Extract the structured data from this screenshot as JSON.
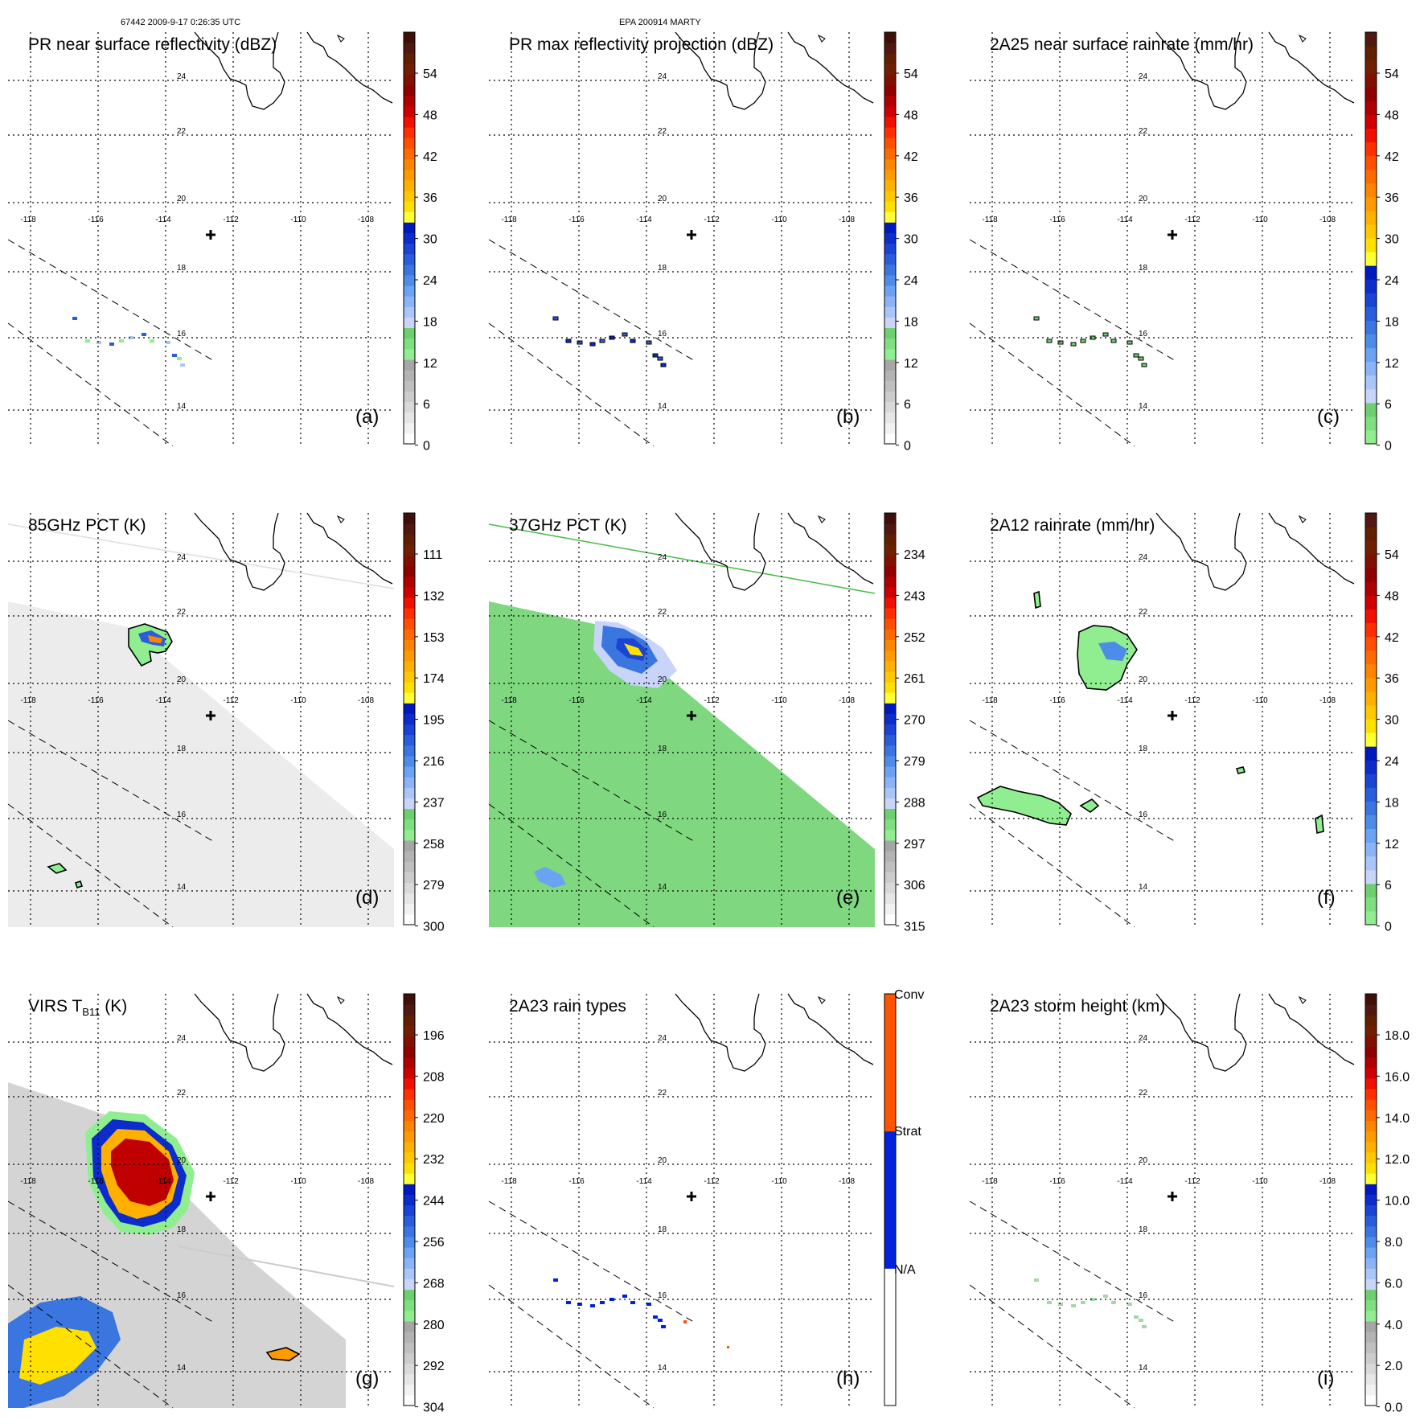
{
  "header": {
    "left": "67442 2009-9-17 0:26:35 UTC",
    "center": "EPA 200914 MARTY"
  },
  "map": {
    "lon_ticks": [
      "-118",
      "-116",
      "-114",
      "-112",
      "-110",
      "-108"
    ],
    "lat_ticks": [
      "24",
      "22",
      "20",
      "18",
      "16",
      "14"
    ]
  },
  "colors": {
    "dbz": [
      "#ffffff",
      "#f2f2f2",
      "#e6e6e6",
      "#d9d9d9",
      "#cccccc",
      "#bfbfbf",
      "#b3b3b3",
      "#a6a6a6",
      "#90ee90",
      "#7fdf7f",
      "#6ecf6e",
      "#c8d4f8",
      "#aac6f8",
      "#8ab4f6",
      "#6aa3f2",
      "#4d8de8",
      "#3a75e0",
      "#2a5ddc",
      "#1a44d4",
      "#0d2ccc",
      "#0018c0",
      "#ffff33",
      "#ffe000",
      "#ffc800",
      "#ffb000",
      "#ff9a00",
      "#ff8400",
      "#ff6a00",
      "#ff5000",
      "#ff3000",
      "#f01000",
      "#d00000",
      "#b00000",
      "#900000",
      "#801000",
      "#702000",
      "#602000",
      "#501810",
      "#401008"
    ],
    "rain": [
      "#90ee90",
      "#7fdf7f",
      "#6ecf6e",
      "#c8d4f8",
      "#aac6f8",
      "#8ab4f6",
      "#6aa3f2",
      "#4d8de8",
      "#3a75e0",
      "#2a5ddc",
      "#1a44d4",
      "#0d2ccc",
      "#0018c0",
      "#ffff33",
      "#ffe000",
      "#ffc800",
      "#ffb000",
      "#ff9a00",
      "#ff8400",
      "#ff6a00",
      "#ff5000",
      "#ff3000",
      "#f01000",
      "#d00000",
      "#b00000",
      "#900000",
      "#801000",
      "#702000",
      "#602000",
      "#501810"
    ],
    "rtype": [
      "#ffffff",
      "#ffffff",
      "#ffffff",
      "#ffffff",
      "#0022dd",
      "#0022dd",
      "#0022dd",
      "#0022dd",
      "#ff5500",
      "#ff5500",
      "#ff5500",
      "#ff5500"
    ]
  },
  "panels": [
    {
      "id": "a",
      "title": "PR near surface reflectivity (dBZ)",
      "label": "(a)",
      "cmap": "dbz",
      "ticks": [
        "54",
        "48",
        "42",
        "36",
        "30",
        "24",
        "18",
        "12",
        "6",
        "0"
      ],
      "cbar_min": 0,
      "cbar_max": 60
    },
    {
      "id": "b",
      "title": "PR max reflectivity projection (dBZ)",
      "label": "(b)",
      "cmap": "dbz",
      "ticks": [
        "54",
        "48",
        "42",
        "36",
        "30",
        "24",
        "18",
        "12",
        "6",
        "0"
      ],
      "cbar_min": 0,
      "cbar_max": 60
    },
    {
      "id": "c",
      "title": "2A25 near surface rainrate (mm/hr)",
      "label": "(c)",
      "cmap": "rain",
      "ticks": [
        "54",
        "48",
        "42",
        "36",
        "30",
        "24",
        "18",
        "12",
        "6",
        "0"
      ],
      "cbar_min": 0,
      "cbar_max": 60
    },
    {
      "id": "d",
      "title": "85GHz PCT (K)",
      "label": "(d)",
      "cmap": "dbz",
      "ticks": [
        "111",
        "132",
        "153",
        "174",
        "195",
        "216",
        "237",
        "258",
        "279",
        "300"
      ],
      "cbar_min": 300,
      "cbar_max": 90
    },
    {
      "id": "e",
      "title": "37GHz PCT (K)",
      "label": "(e)",
      "cmap": "dbz",
      "ticks": [
        "234",
        "243",
        "252",
        "261",
        "270",
        "279",
        "288",
        "297",
        "306",
        "315"
      ],
      "cbar_min": 315,
      "cbar_max": 225
    },
    {
      "id": "f",
      "title": "2A12 rainrate (mm/hr)",
      "label": "(f)",
      "cmap": "rain",
      "ticks": [
        "54",
        "48",
        "42",
        "36",
        "30",
        "24",
        "18",
        "12",
        "6",
        "0"
      ],
      "cbar_min": 0,
      "cbar_max": 60
    },
    {
      "id": "g",
      "title": "VIRS T",
      "title_sub": "B11",
      "title_tail": " (K)",
      "label": "(g)",
      "cmap": "dbz",
      "ticks": [
        "196",
        "208",
        "220",
        "232",
        "244",
        "256",
        "268",
        "280",
        "292",
        "304"
      ],
      "cbar_min": 304,
      "cbar_max": 184
    },
    {
      "id": "h",
      "title": "2A23 rain types",
      "label": "(h)",
      "cmap": "rtype",
      "ticks": [
        "Conv",
        "Strat",
        "N/A"
      ],
      "cbar_min": 0,
      "cbar_max": 3
    },
    {
      "id": "i",
      "title": "2A23 storm height (km)",
      "label": "(i)",
      "cmap": "dbz",
      "ticks": [
        "18.0",
        "16.0",
        "14.0",
        "12.0",
        "10.0",
        "8.0",
        "6.0",
        "4.0",
        "2.0",
        "0.0"
      ],
      "cbar_min": 0,
      "cbar_max": 20
    }
  ]
}
